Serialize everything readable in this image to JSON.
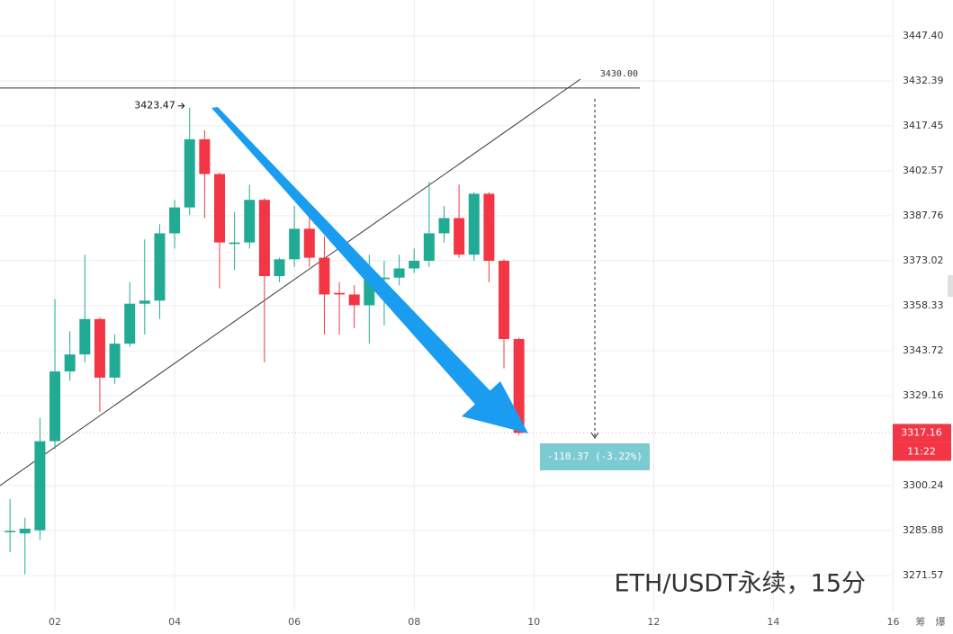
{
  "chart_data": {
    "type": "candlestick",
    "yscale": "log",
    "grid": true,
    "up_color": "#22ab94",
    "down_color": "#f23645",
    "xlim": [
      1.0827,
      17.0
    ],
    "xticks": [
      {
        "value": 2,
        "label": "02"
      },
      {
        "value": 4,
        "label": "04"
      },
      {
        "value": 6,
        "label": "06"
      },
      {
        "value": 8,
        "label": "08"
      },
      10,
      12,
      14,
      16
    ],
    "ylim": [
      3260.2,
      3459.4
    ],
    "yticks": [
      {
        "value": 3447.4,
        "label": "3447.40"
      },
      3432.39,
      3417.45,
      3402.57,
      3387.76,
      3373.02,
      3358.33,
      3343.72,
      3329.16,
      3300.24,
      3285.88,
      3271.57
    ],
    "x": [
      1.25,
      1.5,
      1.75,
      2,
      2.25,
      2.5,
      2.75,
      3,
      3.25,
      3.5,
      3.75,
      4,
      4.25,
      4.5,
      4.75,
      5,
      5.25,
      5.5,
      5.75,
      6,
      6.25,
      6.5,
      6.75,
      7,
      7.25,
      7.5,
      7.75,
      8,
      8.25,
      8.5,
      8.75,
      9,
      9.25,
      9.5,
      9.75
    ],
    "open": [
      3285.5,
      3285,
      3286,
      3314.5,
      3337,
      3342.5,
      3354,
      3335,
      3346,
      3359,
      3360,
      3382,
      3390.5,
      3413,
      3401.5,
      3378.5,
      3379,
      3393,
      3368,
      3373.5,
      3383.5,
      3374,
      3362.5,
      3362,
      3358.5,
      3367,
      3367.5,
      3370.5,
      3373,
      3382,
      3387,
      3375,
      3395,
      3373,
      3347.5
    ],
    "high": [
      3296,
      3290,
      3322,
      3360.5,
      3350,
      3375,
      3354.5,
      3349,
      3366,
      3380,
      3385,
      3393,
      3423.47,
      3416,
      3402,
      3389,
      3398,
      3393.5,
      3374,
      3391,
      3390,
      3381,
      3366,
      3365,
      3375,
      3373,
      3375,
      3377,
      3399,
      3391,
      3398,
      3395.5,
      3395.5,
      3373.5,
      3348
    ],
    "low": [
      3279,
      3272,
      3283,
      3312,
      3334,
      3340,
      3324,
      3333,
      3345,
      3349,
      3354,
      3377,
      3388,
      3387,
      3364,
      3370,
      3377,
      3340,
      3366,
      3371,
      3371,
      3349,
      3349,
      3351,
      3346,
      3352,
      3365,
      3369,
      3371,
      3379,
      3374,
      3373,
      3366,
      3338,
      3316.5
    ],
    "close": [
      3285.8,
      3286.5,
      3314.5,
      3337,
      3342.5,
      3354,
      3335,
      3346,
      3359,
      3360,
      3382,
      3390.5,
      3413,
      3401.5,
      3379,
      3379,
      3393,
      3368,
      3373.5,
      3383.5,
      3374,
      3362,
      3362,
      3358.5,
      3367,
      3367.5,
      3370.5,
      3373,
      3382,
      3387,
      3375,
      3395,
      3373,
      3347.5,
      3317.16
    ],
    "price_line": {
      "value": 3430,
      "label": "3430.00"
    },
    "measure": "-110.37 (-3.22%)",
    "last_price": 3317.16,
    "countdown": "11:22",
    "watermark": "ETH/USDT永续，15分"
  },
  "toolbar": [
    "筹",
    "爆"
  ]
}
